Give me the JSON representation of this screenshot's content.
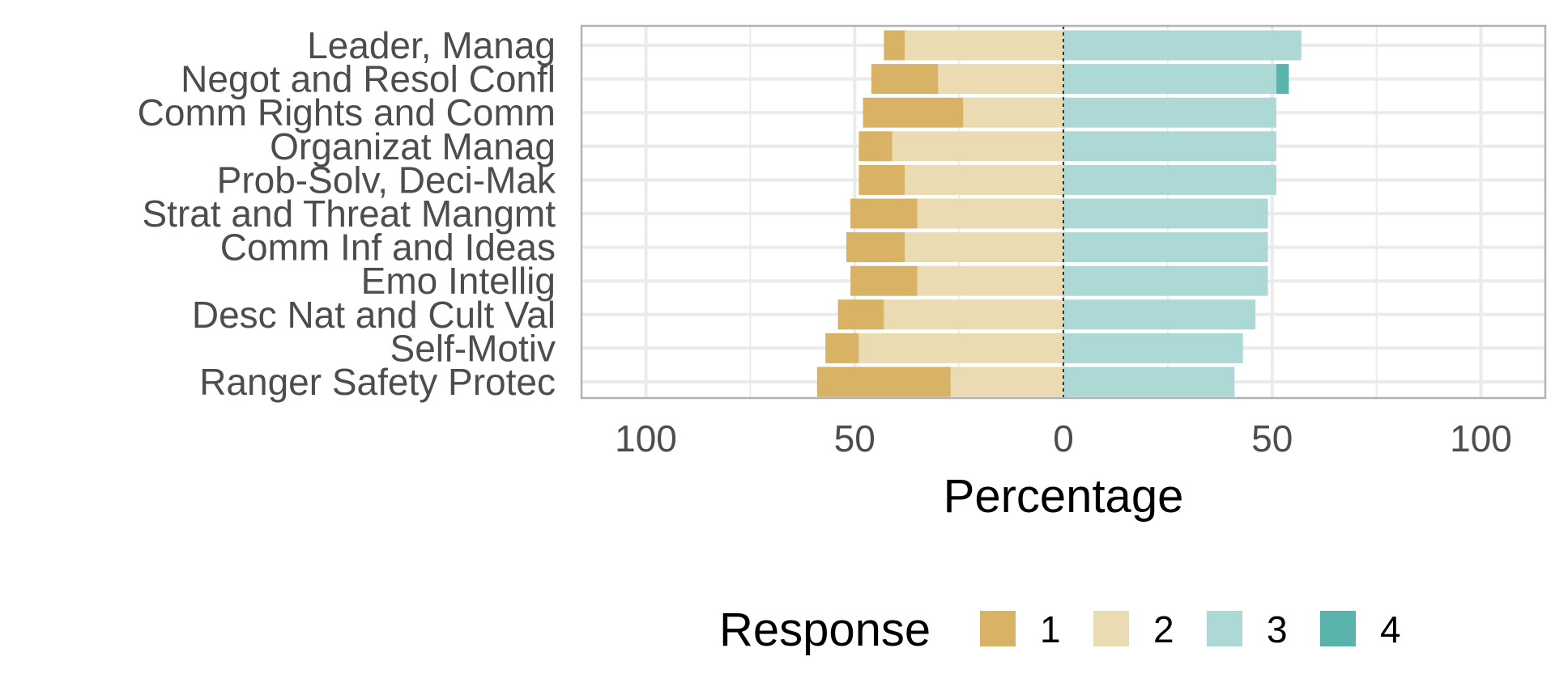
{
  "chart_data": {
    "type": "bar",
    "orientation": "horizontal",
    "diverging": true,
    "categories": [
      "Leader, Manag",
      "Negot and Resol Confl",
      "Comm Rights and Comm",
      "Organizat Manag",
      "Prob-Solv, Deci-Mak",
      "Strat and Threat Mangmt",
      "Comm Inf and Ideas",
      "Emo Intellig",
      "Desc Nat and Cult Val",
      "Self-Motiv",
      "Ranger Safety Protec"
    ],
    "series": [
      {
        "name": "1",
        "side": "negative",
        "color": "#d8b365",
        "values": [
          5,
          16,
          24,
          8,
          11,
          16,
          14,
          16,
          11,
          8,
          32
        ]
      },
      {
        "name": "2",
        "side": "negative",
        "color": "#ebdbb2",
        "values": [
          38,
          30,
          24,
          41,
          38,
          35,
          38,
          35,
          43,
          49,
          27
        ]
      },
      {
        "name": "3",
        "side": "positive",
        "color": "#acd9d5",
        "values": [
          57,
          51,
          51,
          51,
          51,
          49,
          49,
          49,
          46,
          43,
          41
        ]
      },
      {
        "name": "4",
        "side": "positive",
        "color": "#5ab4ac",
        "values": [
          0,
          3,
          0,
          0,
          0,
          0,
          0,
          0,
          0,
          0,
          0
        ]
      }
    ],
    "xlabel": "Percentage",
    "xlim": [
      -115,
      115
    ],
    "xticks": [
      -100,
      -50,
      0,
      50,
      100
    ],
    "xtick_labels": [
      "100",
      "50",
      "0",
      "50",
      "100"
    ],
    "grid": true,
    "legend": {
      "title": "Response",
      "position": "bottom",
      "entries": [
        "1",
        "2",
        "3",
        "4"
      ]
    }
  }
}
